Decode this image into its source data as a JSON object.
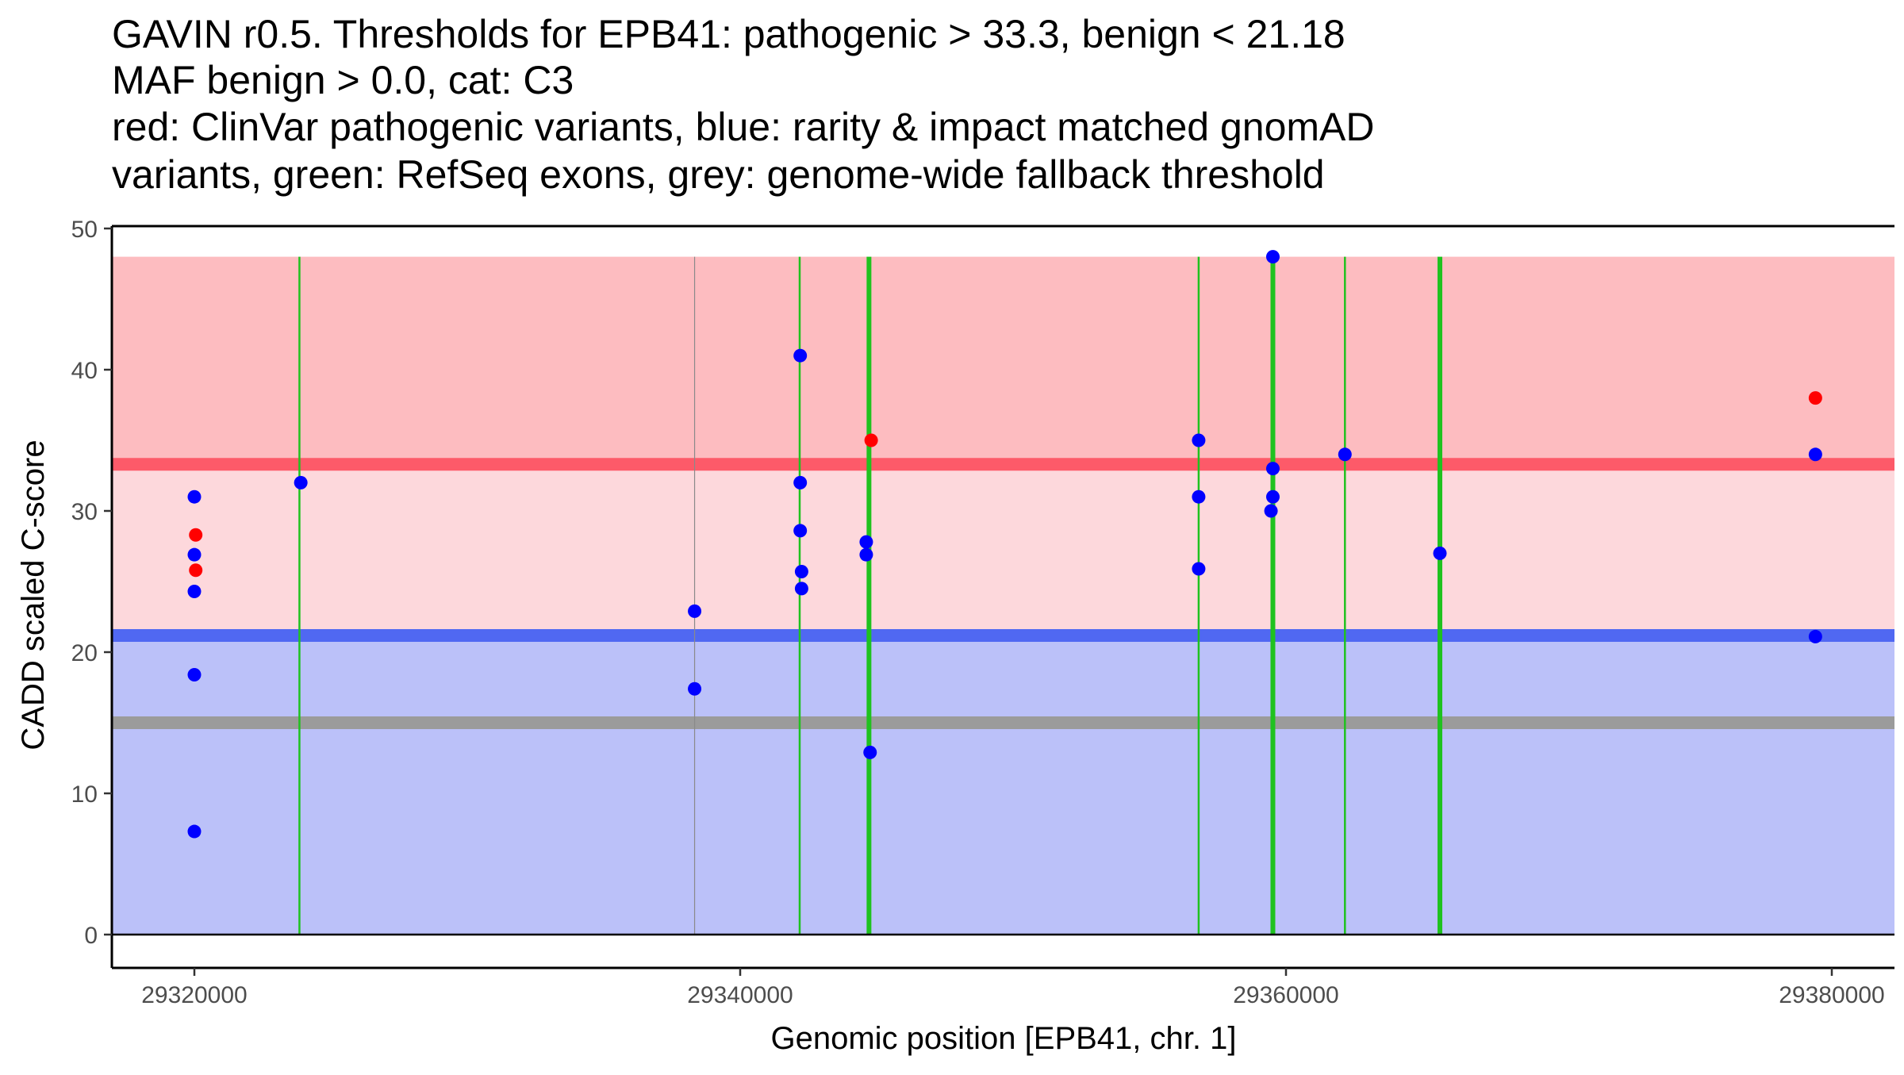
{
  "chart_data": {
    "type": "scatter",
    "title_lines": [
      "GAVIN r0.5. Thresholds for EPB41: pathogenic > 33.3, benign < 21.18",
      "MAF benign > 0.0, cat: C3",
      "red: ClinVar pathogenic variants, blue: rarity & impact matched gnomAD",
      "variants, green: RefSeq exons, grey: genome-wide fallback threshold"
    ],
    "xlabel": "Genomic position [EPB41, chr. 1]",
    "ylabel": "CADD scaled C-score",
    "xlim": [
      29317000,
      29382000
    ],
    "ylim": [
      -2.5,
      50
    ],
    "x_ticks": [
      29320000,
      29340000,
      29360000,
      29380000
    ],
    "x_tick_labels": [
      "29320000",
      "29340000",
      "29360000",
      "29380000"
    ],
    "y_ticks": [
      0,
      10,
      20,
      30,
      40,
      50
    ],
    "y_tick_labels": [
      "0",
      "10",
      "20",
      "30",
      "40",
      "50"
    ],
    "thresholds": {
      "pathogenic": 33.3,
      "benign": 21.18,
      "fallback": 15,
      "band_top": 48
    },
    "colors": {
      "pathogenic_band": "#fdbcc0",
      "middle_band": "#fdd8dc",
      "benign_band": "#bbc1f9",
      "pathogenic_line": "#fd5a69",
      "benign_line": "#5068f2",
      "fallback_line": "#9b9b9b",
      "exon": "#1fc21f",
      "clinvar": "#ff0000",
      "gnomad": "#0000ff"
    },
    "exons": [
      {
        "x": 29323850,
        "thick": false
      },
      {
        "x": 29342180,
        "thick": false
      },
      {
        "x": 29344720,
        "thick": true
      },
      {
        "x": 29356800,
        "thick": false
      },
      {
        "x": 29359520,
        "thick": true
      },
      {
        "x": 29362160,
        "thick": false
      },
      {
        "x": 29365640,
        "thick": true
      }
    ],
    "grey_markers": [
      29338330
    ],
    "series": [
      {
        "name": "ClinVar pathogenic",
        "color": "#ff0000",
        "points": [
          [
            29320050,
            28.3
          ],
          [
            29320050,
            25.8
          ],
          [
            29344800,
            35.0
          ],
          [
            29379400,
            38.0
          ]
        ]
      },
      {
        "name": "gnomAD matched",
        "color": "#0000ff",
        "points": [
          [
            29320000,
            31.0
          ],
          [
            29320000,
            26.9
          ],
          [
            29320000,
            24.3
          ],
          [
            29320000,
            18.4
          ],
          [
            29320000,
            7.3
          ],
          [
            29323900,
            32.0
          ],
          [
            29338330,
            22.9
          ],
          [
            29338330,
            17.4
          ],
          [
            29342200,
            41.0
          ],
          [
            29342200,
            32.0
          ],
          [
            29342200,
            28.6
          ],
          [
            29342250,
            25.7
          ],
          [
            29342250,
            24.5
          ],
          [
            29344620,
            27.8
          ],
          [
            29344620,
            26.9
          ],
          [
            29344760,
            12.9
          ],
          [
            29356800,
            35.0
          ],
          [
            29356800,
            31.0
          ],
          [
            29356800,
            25.9
          ],
          [
            29359520,
            48.0
          ],
          [
            29359520,
            33.0
          ],
          [
            29359520,
            31.0
          ],
          [
            29359450,
            30.0
          ],
          [
            29362160,
            34.0
          ],
          [
            29365640,
            27.0
          ],
          [
            29379400,
            34.0
          ],
          [
            29379400,
            21.1
          ]
        ]
      }
    ]
  }
}
